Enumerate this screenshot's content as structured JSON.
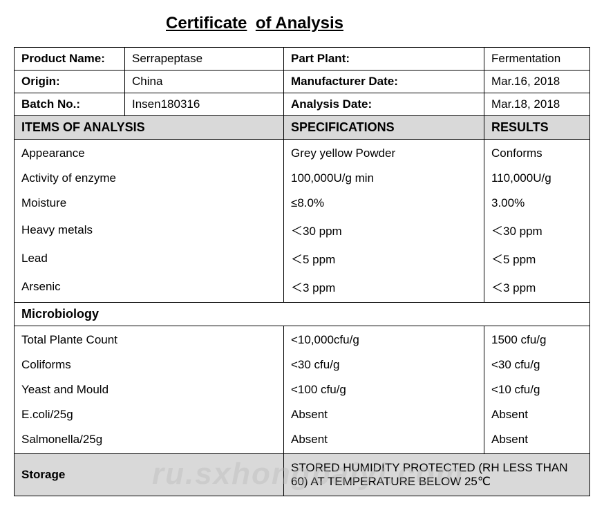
{
  "title": {
    "part1": "Certificate",
    "part2": "of Analysis"
  },
  "header": {
    "rows": [
      {
        "label1": "Product Name:",
        "val1": "Serrapeptase",
        "label2": "Part Plant:",
        "val2": "Fermentation"
      },
      {
        "label1": "Origin:",
        "val1": "China",
        "label2": "Manufacturer Date:",
        "val2": "Mar.16, 2018"
      },
      {
        "label1": "Batch No.:",
        "val1": "Insen180316",
        "label2": "Analysis Date:",
        "val2": "Mar.18, 2018"
      }
    ]
  },
  "section_header": {
    "col1": "ITEMS OF ANALYSIS",
    "col2": "SPECIFICATIONS",
    "col3": "RESULTS"
  },
  "analysis": [
    {
      "item": "Appearance",
      "spec": "Grey yellow Powder",
      "result": "Conforms"
    },
    {
      "item": "Activity of enzyme",
      "spec": "100,000U/g min",
      "result": "110,000U/g"
    },
    {
      "item": "Moisture",
      "spec": "≤8.0%",
      "result": "3.00%"
    },
    {
      "item": "Heavy metals",
      "spec": "＜30 ppm",
      "result": "＜30 ppm"
    },
    {
      "item": "Lead",
      "spec": "＜5 ppm",
      "result": "＜5 ppm"
    },
    {
      "item": "Arsenic",
      "spec": "＜3 ppm",
      "result": "＜3 ppm"
    }
  ],
  "micro_header": "Microbiology",
  "microbiology": [
    {
      "item": "Total Plante Count",
      "spec": "<10,000cfu/g",
      "result": "1500 cfu/g"
    },
    {
      "item": "Coliforms",
      "spec": "<30 cfu/g",
      "result": "<30 cfu/g"
    },
    {
      "item": "Yeast and Mould",
      "spec": "<100 cfu/g",
      "result": "<10 cfu/g"
    },
    {
      "item": "E.coli/25g",
      "spec": "Absent",
      "result": "Absent"
    },
    {
      "item": "Salmonella/25g",
      "spec": "Absent",
      "result": "Absent"
    }
  ],
  "storage": {
    "label": "Storage",
    "value": "STORED HUMIDITY PROTECTED (RH LESS THAN 60) AT TEMPERATURE BELOW 25℃"
  },
  "watermark": "ru.sxhongbaiyi.com",
  "colors": {
    "background": "#ffffff",
    "border": "#000000",
    "section_bg": "#d9d9d9",
    "text": "#000000",
    "watermark": "rgba(180,180,180,0.35)"
  },
  "fonts": {
    "title_size": 24,
    "body_size": 17,
    "header_size": 18
  }
}
